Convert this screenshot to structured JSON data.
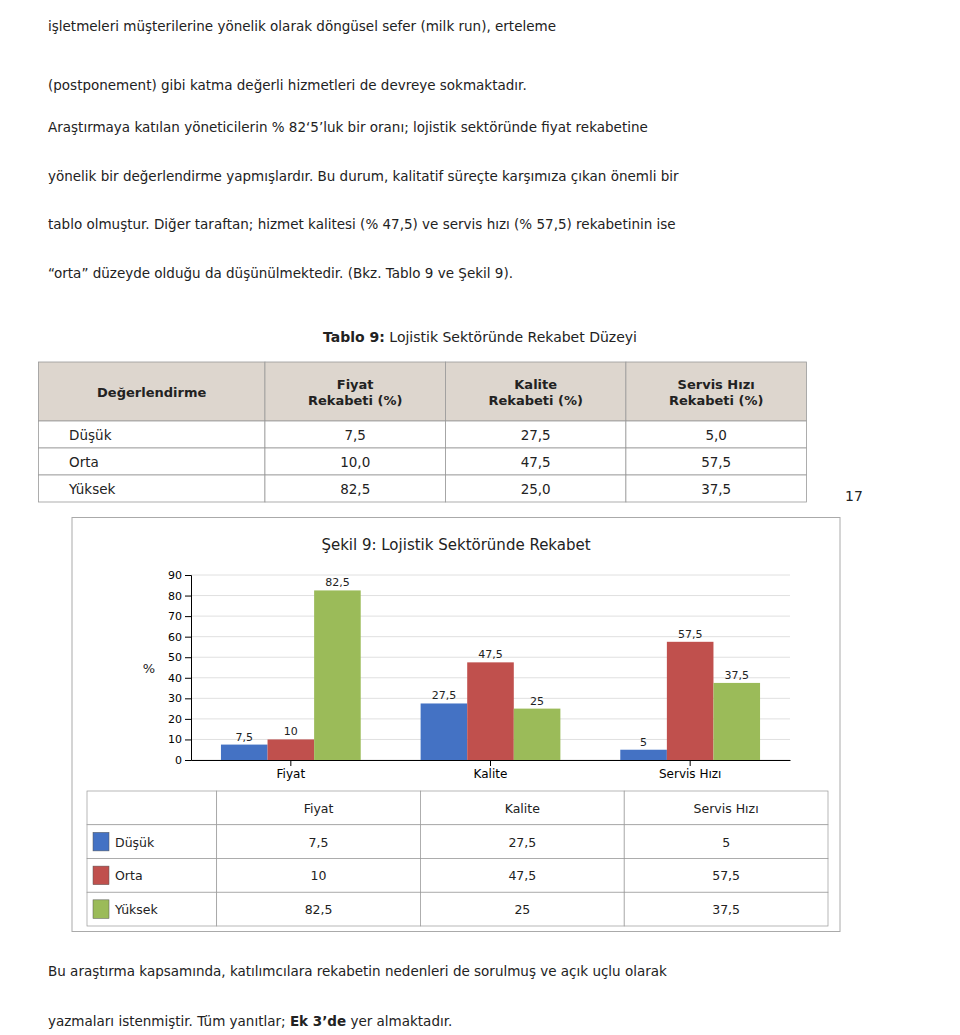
{
  "top_lines": [
    "işletmeleri  müşterilerine  yönelik  olarak  döngüsel  sefer  (milk  run),  erteleme",
    "(postponement) gibi katma değerli hizmetleri de devreye sokmaktadır."
  ],
  "paragraph": [
    "Araştırmaya  katılan  yöneticilerin  %  82‘5’luk  bir  oranı;  lojistik  sektöründe  fiyat  rekabetine",
    "yönelik  bir  değerlendirme  yapmışlardır.  Bu  durum,  kalitatif  süreçte  karşımıza  çıkan  önemli  bir",
    "tablo  olmuştur.  Diğer  taraftan;  hizmet  kalitesi  (%  47,5)  ve  servis  hızı  (%  57,5)  rekabetinin  ise",
    "“orta” düzeyde olduğu da düşünülmektedir. (Bkz. Tablo 9 ve Şekil 9)."
  ],
  "table": {
    "title": [
      "Tablo 9:",
      " Lojistik Sektöründe Rekabet Düzeyi"
    ],
    "headers": [
      "Değerlendirme",
      "Fiyat\nRekabeti (%)",
      "Kalite\nRekabeti (%)",
      "Servis Hızı\nRekabeti (%)"
    ],
    "rows": [
      [
        "Düşük",
        "7,5",
        "27,5",
        "5,0"
      ],
      [
        "Orta",
        "10,0",
        "47,5",
        "57,5"
      ],
      [
        "Yüksek",
        "82,5",
        "25,0",
        "37,5"
      ]
    ]
  },
  "page_number": "17",
  "footer_lines": [
    "Bu araştırma kapsamında, katılımcılara rekabetin nedenleri de sorulmuş ve açık uçlu olarak"
  ],
  "footer_last": [
    "yazmaları istenmiştir. Tüm yanıtlar; ",
    "Ek 3’de",
    " yer almaktadır."
  ],
  "chart_data": {
    "type": "bar",
    "title": "Şekil 9: Lojistik Sektöründe Rekabet",
    "categories": [
      "Fiyat",
      "Kalite",
      "Servis Hızı"
    ],
    "series": [
      {
        "name": "Düşük",
        "color": "#4472C4",
        "values": [
          7.5,
          27.5,
          5.0
        ],
        "value_labels": [
          "7,5",
          "27,5",
          "5"
        ]
      },
      {
        "name": "Orta",
        "color": "#C0504D",
        "values": [
          10.0,
          47.5,
          57.5
        ],
        "value_labels": [
          "10",
          "47,5",
          "57,5"
        ]
      },
      {
        "name": "Yüksek",
        "color": "#9BBB59",
        "values": [
          82.5,
          25.0,
          37.5
        ],
        "value_labels": [
          "82,5",
          "25",
          "37,5"
        ]
      }
    ],
    "ylabel": "%",
    "ylim": [
      0,
      90
    ],
    "yticks": [
      0,
      10,
      20,
      30,
      40,
      50,
      60,
      70,
      80,
      90
    ],
    "grid": true,
    "data_labels": true
  }
}
